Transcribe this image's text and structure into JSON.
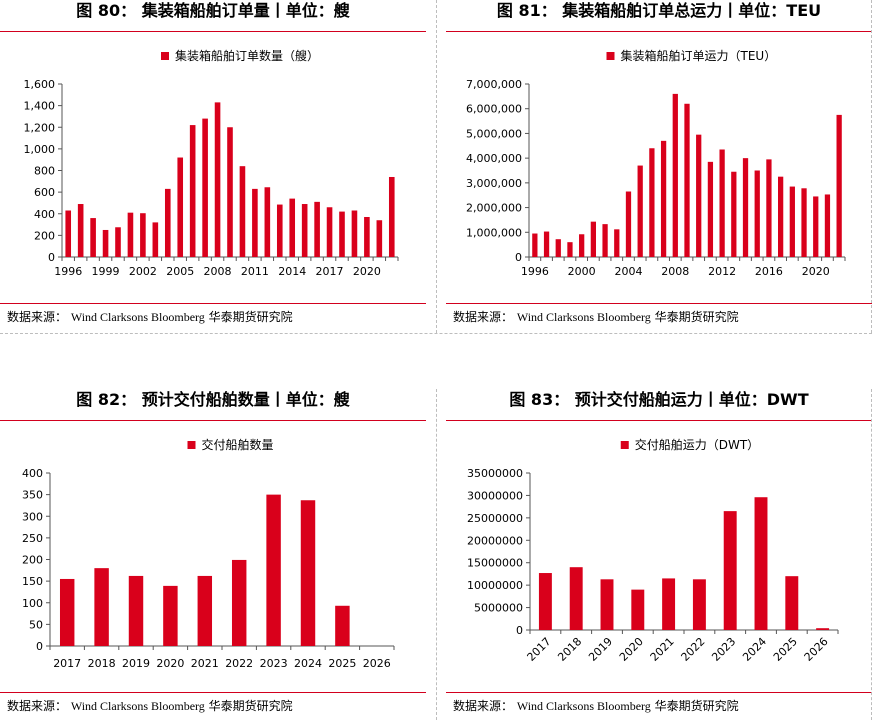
{
  "colors": {
    "accent": "#d2001e",
    "bar": "#d9001b",
    "axis": "#555555"
  },
  "source_text": {
    "prefix": "数据来源：",
    "names": "Wind Clarksons Bloomberg",
    "suffix": "华泰期货研究院"
  },
  "chart_data": [
    {
      "type": "bar",
      "title": "图 80：   集装箱船舶订单量丨单位：艘",
      "legend": [
        "集装箱船舶订单数量（艘）"
      ],
      "x": [
        1996,
        1997,
        1998,
        1999,
        2000,
        2001,
        2002,
        2003,
        2004,
        2005,
        2006,
        2007,
        2008,
        2009,
        2010,
        2011,
        2012,
        2013,
        2014,
        2015,
        2016,
        2017,
        2018,
        2019,
        2020,
        2021,
        2022
      ],
      "x_tick_labels": [
        "1996",
        "1999",
        "2002",
        "2005",
        "2008",
        "2011",
        "2014",
        "2017",
        "2020"
      ],
      "series": [
        {
          "name": "集装箱船舶订单数量（艘）",
          "values": [
            430,
            490,
            360,
            250,
            275,
            410,
            405,
            320,
            630,
            920,
            1220,
            1280,
            1430,
            1200,
            840,
            630,
            645,
            485,
            540,
            490,
            510,
            460,
            420,
            430,
            370,
            340,
            740
          ]
        }
      ],
      "ylim": [
        0,
        1600
      ],
      "yticks": [
        0,
        200,
        400,
        600,
        800,
        1000,
        1200,
        1400,
        1600
      ],
      "ytick_labels": [
        "0",
        "200",
        "400",
        "600",
        "800",
        "1,000",
        "1,200",
        "1,400",
        "1,600"
      ],
      "grid": false,
      "legend_position": "top"
    },
    {
      "type": "bar",
      "title": "图 81：  集装箱船舶订单总运力丨单位：TEU",
      "legend": [
        "集装箱船舶订单运力（TEU）"
      ],
      "x": [
        1996,
        1997,
        1998,
        1999,
        2000,
        2001,
        2002,
        2003,
        2004,
        2005,
        2006,
        2007,
        2008,
        2009,
        2010,
        2011,
        2012,
        2013,
        2014,
        2015,
        2016,
        2017,
        2018,
        2019,
        2020,
        2021,
        2022
      ],
      "x_tick_labels": [
        "1996",
        "2000",
        "2004",
        "2008",
        "2012",
        "2016",
        "2020"
      ],
      "series": [
        {
          "name": "集装箱船舶订单运力（TEU）",
          "values": [
            950000,
            1030000,
            720000,
            600000,
            920000,
            1430000,
            1330000,
            1120000,
            2650000,
            3700000,
            4400000,
            4700000,
            6600000,
            6200000,
            4950000,
            3850000,
            4350000,
            3450000,
            4000000,
            3500000,
            3950000,
            3250000,
            2850000,
            2780000,
            2450000,
            2530000,
            5750000
          ]
        }
      ],
      "ylim": [
        0,
        7000000
      ],
      "yticks": [
        0,
        1000000,
        2000000,
        3000000,
        4000000,
        5000000,
        6000000,
        7000000
      ],
      "ytick_labels": [
        "0",
        "1,000,000",
        "2,000,000",
        "3,000,000",
        "4,000,000",
        "5,000,000",
        "6,000,000",
        "7,000,000"
      ],
      "grid": false,
      "legend_position": "top"
    },
    {
      "type": "bar",
      "title": "图 82：   预计交付船舶数量丨单位：艘",
      "legend": [
        "交付船舶数量"
      ],
      "categories": [
        "2017",
        "2018",
        "2019",
        "2020",
        "2021",
        "2022",
        "2023",
        "2024",
        "2025",
        "2026"
      ],
      "series": [
        {
          "name": "交付船舶数量",
          "values": [
            155,
            180,
            162,
            139,
            162,
            199,
            350,
            337,
            93,
            0
          ]
        }
      ],
      "ylim": [
        0,
        400
      ],
      "yticks": [
        0,
        50,
        100,
        150,
        200,
        250,
        300,
        350,
        400
      ],
      "ytick_labels": [
        "0",
        "50",
        "100",
        "150",
        "200",
        "250",
        "300",
        "350",
        "400"
      ],
      "grid": false,
      "legend_position": "top"
    },
    {
      "type": "bar",
      "title": "图 83：  预计交付船舶运力丨单位：DWT",
      "legend": [
        "交付船舶运力（DWT）"
      ],
      "categories": [
        "2017",
        "2018",
        "2019",
        "2020",
        "2021",
        "2022",
        "2023",
        "2024",
        "2025",
        "2026"
      ],
      "series": [
        {
          "name": "交付船舶运力（DWT）",
          "values": [
            12700000,
            14000000,
            11300000,
            9000000,
            11500000,
            11300000,
            26500000,
            29600000,
            12000000,
            400000
          ]
        }
      ],
      "ylim": [
        0,
        35000000
      ],
      "yticks": [
        0,
        5000000,
        10000000,
        15000000,
        20000000,
        25000000,
        30000000,
        35000000
      ],
      "ytick_labels": [
        "0",
        "5000000",
        "10000000",
        "15000000",
        "20000000",
        "25000000",
        "30000000",
        "35000000"
      ],
      "grid": false,
      "legend_position": "top"
    }
  ]
}
